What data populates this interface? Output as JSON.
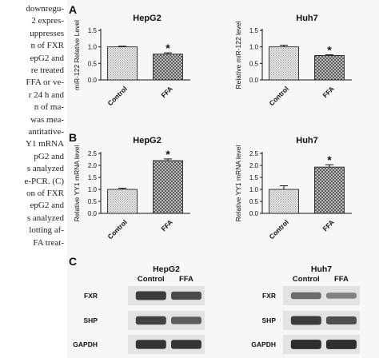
{
  "side_text": [
    "downregu-",
    "2 expres-",
    "uppresses",
    "n of FXR",
    "epG2 and",
    "re treated",
    "FFA or ve-",
    "r 24 h and",
    "n of ma-",
    "was mea-",
    "antitative-",
    "Y1 mRNA",
    "pG2  and",
    "s analyzed",
    "e-PCR. (C)",
    "on of FXR",
    "epG2 and",
    "s analyzed",
    "lotting af-",
    "FA treat-"
  ],
  "panel_labels": {
    "a": "A",
    "b": "B",
    "c": "C"
  },
  "chart_data": [
    {
      "type": "bar",
      "title": "HepG2",
      "ylabel": "miR-122 Relative Level",
      "categories": [
        "Control",
        "FFA"
      ],
      "values": [
        1.0,
        0.78
      ],
      "errors": [
        0.02,
        0.04
      ],
      "ylim": [
        0,
        1.5
      ],
      "yticks": [
        "0.0",
        "0.5",
        "1.0",
        "1.5"
      ],
      "significance": [
        "",
        "*"
      ]
    },
    {
      "type": "bar",
      "title": "Huh7",
      "ylabel": "Relative miR-122 level",
      "categories": [
        "Control",
        "FFA"
      ],
      "values": [
        1.0,
        0.74
      ],
      "errors": [
        0.05,
        0.02
      ],
      "ylim": [
        0,
        1.5
      ],
      "yticks": [
        "0.0",
        "0.5",
        "1.0",
        "1.5"
      ],
      "significance": [
        "",
        "*"
      ]
    },
    {
      "type": "bar",
      "title": "HepG2",
      "ylabel": "Relative YY1 mRNA level",
      "categories": [
        "Control",
        "FFA"
      ],
      "values": [
        1.0,
        2.2
      ],
      "errors": [
        0.05,
        0.07
      ],
      "ylim": [
        0,
        2.5
      ],
      "yticks": [
        "0.0",
        "0.5",
        "1.0",
        "1.5",
        "2.0",
        "2.5"
      ],
      "significance": [
        "",
        "*"
      ]
    },
    {
      "type": "bar",
      "title": "Huh7",
      "ylabel": "Relative YY1 mRNA level",
      "categories": [
        "Control",
        "FFA"
      ],
      "values": [
        1.0,
        1.93
      ],
      "errors": [
        0.15,
        0.1
      ],
      "ylim": [
        0,
        2.5
      ],
      "yticks": [
        "0.0",
        "0.5",
        "1.0",
        "1.5",
        "2.0",
        "2.5"
      ],
      "significance": [
        "",
        "*"
      ]
    }
  ],
  "blots": [
    {
      "title": "HepG2",
      "columns": [
        "Control",
        "FFA"
      ],
      "rows": [
        {
          "name": "FXR",
          "intensity": [
            0.85,
            0.75
          ]
        },
        {
          "name": "SHP",
          "intensity": [
            0.8,
            0.6
          ]
        },
        {
          "name": "GAPDH",
          "intensity": [
            0.9,
            0.9
          ]
        }
      ]
    },
    {
      "title": "Huh7",
      "columns": [
        "Control",
        "FFA"
      ],
      "rows": [
        {
          "name": "FXR",
          "intensity": [
            0.5,
            0.35
          ]
        },
        {
          "name": "SHP",
          "intensity": [
            0.85,
            0.7
          ]
        },
        {
          "name": "GAPDH",
          "intensity": [
            0.95,
            0.95
          ]
        }
      ]
    }
  ],
  "colors": {
    "control_bar": "#cfcfcf",
    "ffa_bar": "#aaaaaa",
    "band": "#1b1b1b",
    "blot_bg": "#e3e3e3"
  }
}
